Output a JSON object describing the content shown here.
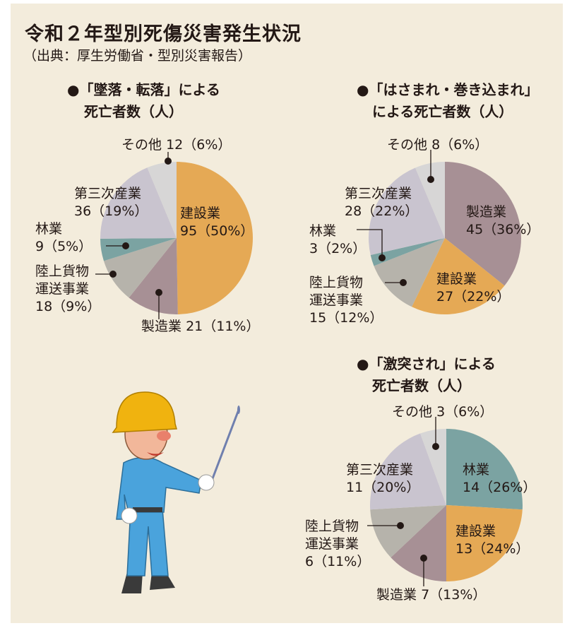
{
  "title": "令和２年型別死傷災害発生状況",
  "source": "（出典：厚生労働省・型別災害報告）",
  "colors": {
    "建設業": "#e5a955",
    "製造業": "#a79095",
    "陸上貨物運送事業": "#b6b3ab",
    "林業": "#7ba3a2",
    "第三次産業": "#c9c4cf",
    "その他": "#d7d6d6",
    "background": "#f3ecdc"
  },
  "chart_data": [
    {
      "type": "pie",
      "title_line1": "●「墜落・転落」による",
      "title_line2": "死亡者数（人）",
      "slices": [
        {
          "name": "建設業",
          "value": 95,
          "pct": 50,
          "label": "95（50%）"
        },
        {
          "name": "製造業",
          "value": 21,
          "pct": 11,
          "label": "21（11%）"
        },
        {
          "name": "陸上貨物運送事業",
          "name_l1": "陸上貨物",
          "name_l2": "運送事業",
          "value": 18,
          "pct": 9,
          "label": "18（9%）"
        },
        {
          "name": "林業",
          "value": 9,
          "pct": 5,
          "label": "9（5%）"
        },
        {
          "name": "第三次産業",
          "value": 36,
          "pct": 19,
          "label": "36（19%）"
        },
        {
          "name": "その他",
          "value": 12,
          "pct": 6,
          "label": "12（6%）"
        }
      ]
    },
    {
      "type": "pie",
      "title_line1": "●「はさまれ・巻き込まれ」",
      "title_line2": "による死亡者数（人）",
      "slices": [
        {
          "name": "製造業",
          "value": 45,
          "pct": 36,
          "label": "45（36%）"
        },
        {
          "name": "建設業",
          "value": 27,
          "pct": 22,
          "label": "27（22%）"
        },
        {
          "name": "陸上貨物運送事業",
          "name_l1": "陸上貨物",
          "name_l2": "運送事業",
          "value": 15,
          "pct": 12,
          "label": "15（12%）"
        },
        {
          "name": "林業",
          "value": 3,
          "pct": 2,
          "label": "3（2%）"
        },
        {
          "name": "第三次産業",
          "value": 28,
          "pct": 22,
          "label": "28（22%）"
        },
        {
          "name": "その他",
          "value": 8,
          "pct": 6,
          "label": "8（6%）"
        }
      ]
    },
    {
      "type": "pie",
      "title_line1": "●「激突され」による",
      "title_line2": "死亡者数（人）",
      "slices": [
        {
          "name": "林業",
          "value": 14,
          "pct": 26,
          "label": "14（26%）"
        },
        {
          "name": "建設業",
          "value": 13,
          "pct": 24,
          "label": "13（24%）"
        },
        {
          "name": "製造業",
          "value": 7,
          "pct": 13,
          "label": "7（13%）"
        },
        {
          "name": "陸上貨物運送事業",
          "name_l1": "陸上貨物",
          "name_l2": "運送事業",
          "value": 6,
          "pct": 11,
          "label": "6（11%）"
        },
        {
          "name": "第三次産業",
          "value": 11,
          "pct": 20,
          "label": "11（20%）"
        },
        {
          "name": "その他",
          "value": 3,
          "pct": 6,
          "label": "3（6%）"
        }
      ]
    }
  ]
}
